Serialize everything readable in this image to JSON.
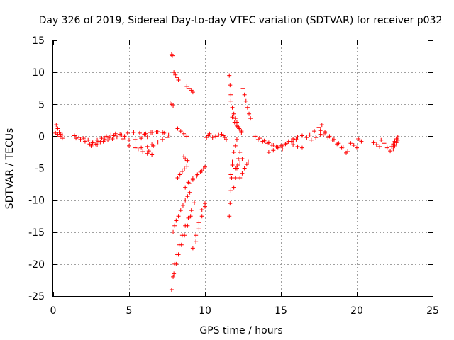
{
  "chart_data": {
    "type": "scatter",
    "title": "Day 326 of 2019, Sidereal Day-to-day VTEC variation (SDTVAR) for receiver p032",
    "xlabel": "GPS time / hours",
    "ylabel": "SDTVAR / TECUs",
    "xlim": [
      0,
      25
    ],
    "ylim": [
      -25,
      15
    ],
    "xticks": [
      0,
      5,
      10,
      15,
      20,
      25
    ],
    "yticks": [
      -25,
      -20,
      -15,
      -10,
      -5,
      0,
      5,
      10,
      15
    ],
    "grid": true,
    "marker": "+",
    "color": "#ff0000",
    "series": [
      {
        "name": "SDTVAR",
        "tracks": [
          {
            "x": [
              0.2,
              0.3,
              0.4,
              0.5,
              0.6
            ],
            "y": [
              1.8,
              1.2,
              0.6,
              0.3,
              0.2
            ]
          },
          {
            "x": [
              0.15,
              0.3,
              0.45,
              0.6
            ],
            "y": [
              0.5,
              0.3,
              0.0,
              -0.3
            ]
          },
          {
            "x": [
              1.4,
              1.7,
              2.0,
              2.3,
              2.6,
              2.9
            ],
            "y": [
              0.1,
              -0.2,
              -0.3,
              -0.6,
              -1.0,
              -1.3
            ]
          },
          {
            "x": [
              1.5,
              1.8,
              2.1,
              2.4
            ],
            "y": [
              -0.3,
              -0.5,
              -0.8,
              -1.2
            ]
          },
          {
            "x": [
              2.5,
              2.8,
              3.1,
              3.4,
              3.7,
              4.0
            ],
            "y": [
              -1.5,
              -1.2,
              -0.9,
              -0.5,
              -0.2,
              0.1
            ]
          },
          {
            "x": [
              2.6,
              2.9,
              3.2,
              3.5,
              3.8,
              4.1,
              4.4,
              4.7
            ],
            "y": [
              -1.0,
              -0.6,
              -0.3,
              0.0,
              0.2,
              0.4,
              0.3,
              0.0
            ]
          },
          {
            "x": [
              3.0,
              3.3,
              3.6,
              3.9
            ],
            "y": [
              -0.8,
              -0.8,
              -0.6,
              -0.4
            ]
          },
          {
            "x": [
              4.2,
              4.6,
              5.0,
              5.4,
              5.8,
              6.2
            ],
            "y": [
              -0.1,
              -0.4,
              -0.6,
              -0.5,
              -0.3,
              -0.1
            ]
          },
          {
            "x": [
              4.5,
              4.9,
              5.3,
              5.7,
              6.1,
              6.5,
              6.9,
              7.3
            ],
            "y": [
              0.2,
              0.5,
              0.6,
              0.5,
              0.4,
              0.6,
              0.7,
              0.5
            ]
          },
          {
            "x": [
              5.0,
              5.4,
              5.8,
              6.2,
              6.5
            ],
            "y": [
              -1.5,
              -1.8,
              -1.8,
              -1.6,
              -1.3
            ]
          },
          {
            "x": [
              5.6,
              5.9,
              6.2,
              6.5
            ],
            "y": [
              -2.0,
              -2.4,
              -2.7,
              -2.9
            ]
          },
          {
            "x": [
              6.3,
              6.6,
              6.9,
              7.2,
              7.5
            ],
            "y": [
              -2.3,
              -1.5,
              -0.9,
              -0.5,
              -0.2
            ]
          },
          {
            "x": [
              6.0,
              6.4,
              6.8,
              7.2,
              7.6
            ],
            "y": [
              0.3,
              0.6,
              0.7,
              0.6,
              0.2
            ]
          },
          {
            "x": [
              7.8,
              7.85
            ],
            "y": [
              12.8,
              12.6
            ]
          },
          {
            "x": [
              7.7,
              7.8,
              7.9
            ],
            "y": [
              5.2,
              5.0,
              4.8
            ]
          },
          {
            "x": [
              7.95,
              8.05,
              8.15,
              8.25
            ],
            "y": [
              10.0,
              9.6,
              9.2,
              8.8
            ]
          },
          {
            "x": [
              8.8,
              8.95,
              9.1,
              9.2
            ],
            "y": [
              7.8,
              7.5,
              7.2,
              6.9
            ]
          },
          {
            "x": [
              8.2,
              8.4,
              8.6,
              8.8
            ],
            "y": [
              1.2,
              0.8,
              0.4,
              0.0
            ]
          },
          {
            "x": [
              8.6,
              8.7,
              8.85
            ],
            "y": [
              -3.2,
              -3.5,
              -3.8
            ]
          },
          {
            "x": [
              8.2,
              8.35,
              8.5,
              8.65,
              8.8
            ],
            "y": [
              -6.5,
              -6.0,
              -5.5,
              -5.1,
              -4.7
            ]
          },
          {
            "x": [
              8.7,
              8.95,
              9.2,
              9.45,
              9.7,
              9.9
            ],
            "y": [
              -8.0,
              -7.4,
              -6.8,
              -6.2,
              -5.6,
              -5.1
            ]
          },
          {
            "x": [
              8.9,
              9.2,
              9.5,
              9.8,
              10.0
            ],
            "y": [
              -7.2,
              -6.6,
              -6.0,
              -5.4,
              -4.8
            ]
          },
          {
            "x": [
              7.9,
              8.0,
              8.1,
              8.25,
              8.4,
              8.55,
              8.7,
              8.85,
              9.0
            ],
            "y": [
              -15.0,
              -14.0,
              -13.2,
              -12.5,
              -11.6,
              -10.8,
              -10.0,
              -9.4,
              -8.8
            ]
          },
          {
            "x": [
              7.8,
              7.9,
              8.0,
              8.15,
              8.3,
              8.5,
              8.7,
              8.9,
              9.1,
              9.3
            ],
            "y": [
              -24.0,
              -22.0,
              -20.0,
              -18.5,
              -17.0,
              -15.5,
              -14.0,
              -12.8,
              -11.6,
              -10.4
            ]
          },
          {
            "x": [
              7.95,
              8.1,
              8.25,
              8.45,
              8.65,
              8.85,
              9.05
            ],
            "y": [
              -21.5,
              -20.0,
              -18.5,
              -17.0,
              -15.5,
              -14.0,
              -12.5
            ]
          },
          {
            "x": [
              9.2,
              9.4,
              9.6,
              9.8,
              10.0
            ],
            "y": [
              -17.5,
              -15.5,
              -13.5,
              -11.5,
              -10.5
            ]
          },
          {
            "x": [
              9.4,
              9.6,
              9.8,
              10.0
            ],
            "y": [
              -16.5,
              -14.5,
              -12.5,
              -11.0
            ]
          },
          {
            "x": [
              10.1,
              10.2,
              10.3
            ],
            "y": [
              -0.2,
              0.1,
              0.4
            ]
          },
          {
            "x": [
              10.5,
              10.7,
              10.9
            ],
            "y": [
              -0.2,
              0.0,
              0.2
            ]
          },
          {
            "x": [
              11.1,
              11.2,
              11.3,
              11.4
            ],
            "y": [
              0.3,
              0.1,
              -0.2,
              -0.5
            ]
          },
          {
            "x": [
              11.6,
              11.65,
              11.7
            ],
            "y": [
              9.5,
              8.0,
              6.5
            ]
          },
          {
            "x": [
              11.7,
              11.8,
              11.9,
              12.0,
              12.1,
              12.2,
              12.3,
              12.4
            ],
            "y": [
              5.5,
              4.5,
              3.5,
              2.8,
              2.2,
              1.5,
              1.0,
              0.6
            ]
          },
          {
            "x": [
              11.8,
              11.95,
              12.1,
              12.25,
              12.4
            ],
            "y": [
              3.0,
              2.2,
              1.6,
              1.2,
              0.8
            ]
          },
          {
            "x": [
              12.5,
              12.6,
              12.7,
              12.8,
              12.9,
              13.0
            ],
            "y": [
              7.5,
              6.5,
              5.5,
              4.5,
              3.5,
              2.8
            ]
          },
          {
            "x": [
              11.6,
              11.65,
              11.7,
              11.75,
              11.8
            ],
            "y": [
              -12.5,
              -10.5,
              -8.5,
              -6.5,
              -4.5
            ]
          },
          {
            "x": [
              11.7,
              11.8,
              11.9,
              12.0,
              12.1
            ],
            "y": [
              -6.0,
              -4.0,
              -2.5,
              -1.5,
              -0.5
            ]
          },
          {
            "x": [
              11.9,
              12.0,
              12.1,
              12.2,
              12.3
            ],
            "y": [
              -8.0,
              -6.5,
              -5.0,
              -3.5,
              -2.5
            ]
          },
          {
            "x": [
              12.3,
              12.45,
              12.6,
              12.75,
              12.85
            ],
            "y": [
              -6.5,
              -5.8,
              -5.0,
              -4.4,
              -4.0
            ]
          },
          {
            "x": [
              12.0,
              12.15,
              12.3,
              12.45
            ],
            "y": [
              -5.0,
              -4.5,
              -4.0,
              -3.5
            ]
          },
          {
            "x": [
              13.3,
              13.6,
              13.9,
              14.2,
              14.5,
              14.8,
              15.1
            ],
            "y": [
              0.0,
              -0.3,
              -0.7,
              -1.0,
              -1.4,
              -1.7,
              -2.0
            ]
          },
          {
            "x": [
              13.5,
              13.8,
              14.1,
              14.4,
              14.7,
              15.0,
              15.3
            ],
            "y": [
              -0.5,
              -0.8,
              -1.1,
              -1.4,
              -1.6,
              -1.5,
              -1.2
            ]
          },
          {
            "x": [
              14.2,
              14.5,
              14.8,
              15.1,
              15.4,
              15.7,
              16.0
            ],
            "y": [
              -2.5,
              -2.2,
              -1.8,
              -1.5,
              -1.1,
              -0.8,
              -0.5
            ]
          },
          {
            "x": [
              15.5,
              15.8,
              16.1,
              16.4,
              16.7
            ],
            "y": [
              -0.8,
              -0.4,
              -0.1,
              0.1,
              -0.2
            ]
          },
          {
            "x": [
              15.8,
              16.1,
              16.4
            ],
            "y": [
              -1.3,
              -1.6,
              -1.8
            ]
          },
          {
            "x": [
              16.9,
              17.2,
              17.5,
              17.7
            ],
            "y": [
              0.2,
              0.8,
              1.4,
              1.8
            ]
          },
          {
            "x": [
              17.0,
              17.3,
              17.6,
              17.9
            ],
            "y": [
              -0.6,
              -0.2,
              0.3,
              0.7
            ]
          },
          {
            "x": [
              17.6,
              17.9,
              18.2,
              18.5,
              18.8,
              19.1,
              19.4
            ],
            "y": [
              0.9,
              0.5,
              0.0,
              -0.5,
              -1.1,
              -1.7,
              -2.4
            ]
          },
          {
            "x": [
              17.8,
              18.1,
              18.4,
              18.7,
              19.0,
              19.3
            ],
            "y": [
              0.2,
              -0.2,
              -0.6,
              -1.2,
              -1.8,
              -2.6
            ]
          },
          {
            "x": [
              19.6,
              19.8,
              20.0
            ],
            "y": [
              -1.1,
              -1.4,
              -1.8
            ]
          },
          {
            "x": [
              20.1,
              20.2,
              20.3
            ],
            "y": [
              -0.4,
              -0.6,
              -0.8
            ]
          },
          {
            "x": [
              21.1,
              21.3,
              21.5
            ],
            "y": [
              -1.0,
              -1.3,
              -1.6
            ]
          },
          {
            "x": [
              21.6,
              21.8,
              22.0,
              22.2
            ],
            "y": [
              -0.6,
              -1.1,
              -1.8,
              -2.3
            ]
          },
          {
            "x": [
              22.3,
              22.4,
              22.5,
              22.6,
              22.7
            ],
            "y": [
              -1.6,
              -1.2,
              -0.8,
              -0.4,
              -0.1
            ]
          },
          {
            "x": [
              22.4,
              22.5,
              22.6,
              22.7
            ],
            "y": [
              -2.0,
              -1.5,
              -1.0,
              -0.6
            ]
          }
        ]
      }
    ]
  }
}
